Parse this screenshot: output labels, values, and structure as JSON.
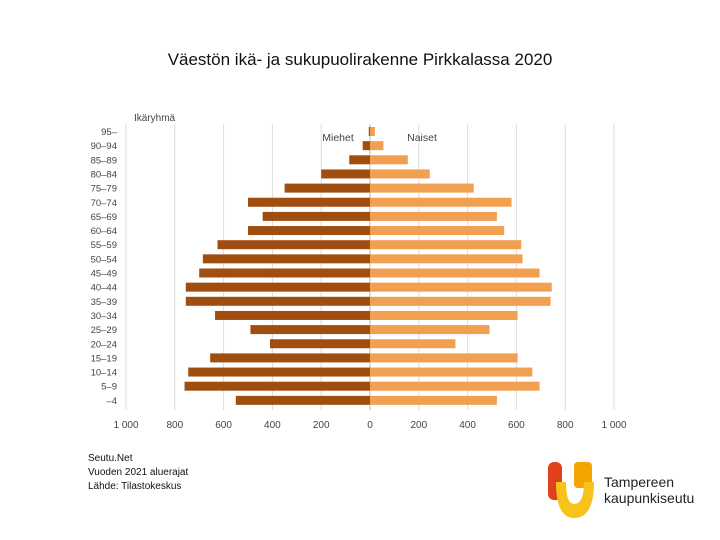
{
  "title": "Väestön ikä- ja sukupuolirakenne Pirkkalassa 2020",
  "chart_data": {
    "type": "bar",
    "orientation": "horizontal-pyramid",
    "y_axis_label": "Ikäryhmä",
    "categories": [
      "95–",
      "90–94",
      "85–89",
      "80–84",
      "75–79",
      "70–74",
      "65–69",
      "60–64",
      "55–59",
      "50–54",
      "45–49",
      "40–44",
      "35–39",
      "30–34",
      "25–29",
      "20–24",
      "15–19",
      "10–14",
      "5–9",
      "–4"
    ],
    "series": [
      {
        "name": "Miehet",
        "color": "#a04e10",
        "values": [
          5,
          30,
          85,
          200,
          350,
          500,
          440,
          500,
          625,
          685,
          700,
          755,
          755,
          635,
          490,
          410,
          655,
          745,
          760,
          550
        ]
      },
      {
        "name": "Naiset",
        "color": "#f0a050",
        "values": [
          20,
          55,
          155,
          245,
          425,
          580,
          520,
          550,
          620,
          625,
          695,
          745,
          740,
          605,
          490,
          350,
          605,
          665,
          695,
          520
        ]
      }
    ],
    "xlim": [
      -1000,
      1000
    ],
    "x_ticks": [
      -1000,
      -800,
      -600,
      -400,
      -200,
      0,
      200,
      400,
      600,
      800,
      1000
    ],
    "x_tick_labels": [
      "1 000",
      "800",
      "600",
      "400",
      "200",
      "0",
      "200",
      "400",
      "600",
      "800",
      "1 000"
    ],
    "grid": true
  },
  "footer": {
    "line1": "Seutu.Net",
    "line2": "Vuoden 2021 aluerajat",
    "line3": "Lähde: Tilastokeskus"
  },
  "logo": {
    "line1": "Tampereen",
    "line2": "kaupunkiseutu",
    "colors": [
      "#e0401c",
      "#f5a400",
      "#f7c21a"
    ]
  }
}
